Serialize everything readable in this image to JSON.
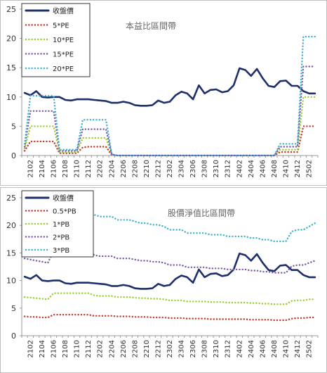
{
  "chart_data": [
    {
      "type": "line",
      "title": "本益比區間帶",
      "ylim": [
        0,
        25
      ],
      "yticks": [
        0,
        5,
        10,
        15,
        20,
        25
      ],
      "x": [
        "2101",
        "2102",
        "2103",
        "2104",
        "2105",
        "2106",
        "2107",
        "2108",
        "2109",
        "2110",
        "2111",
        "2112",
        "2201",
        "2202",
        "2203",
        "2204",
        "2205",
        "2206",
        "2207",
        "2208",
        "2209",
        "2210",
        "2211",
        "2212",
        "2301",
        "2302",
        "2303",
        "2304",
        "2305",
        "2306",
        "2307",
        "2308",
        "2309",
        "2310",
        "2311",
        "2312",
        "2401",
        "2402",
        "2403",
        "2404",
        "2405",
        "2406",
        "2407",
        "2408",
        "2409",
        "2410",
        "2411",
        "2412",
        "2501",
        "2502",
        "2503"
      ],
      "xtick_labels": [
        "2102",
        "2104",
        "2106",
        "2108",
        "2110",
        "2112",
        "2202",
        "2204",
        "2206",
        "2208",
        "2210",
        "2212",
        "2302",
        "2304",
        "2306",
        "2308",
        "2310",
        "2312",
        "2402",
        "2404",
        "2406",
        "2408",
        "2410",
        "2412",
        "2502"
      ],
      "legend_position": "top-left",
      "series": [
        {
          "name": "收盤價",
          "color": "#1f2f6b",
          "style": "solid",
          "values": [
            10.7,
            10.3,
            11.0,
            10.0,
            9.9,
            10.0,
            10.0,
            9.5,
            9.4,
            9.6,
            9.6,
            9.6,
            9.5,
            9.4,
            9.3,
            9.0,
            9.0,
            9.2,
            9.0,
            8.6,
            8.5,
            8.5,
            8.6,
            9.4,
            9.0,
            9.2,
            10.3,
            10.9,
            10.6,
            9.6,
            12.0,
            10.6,
            11.2,
            11.3,
            10.8,
            11.0,
            12.0,
            14.9,
            14.6,
            13.6,
            14.8,
            13.2,
            11.9,
            11.7,
            12.7,
            12.8,
            11.9,
            11.9,
            11.0,
            10.6,
            10.6
          ]
        },
        {
          "name": "5*PE",
          "color": "#c0392b",
          "style": "dotted",
          "values": [
            0.8,
            2.4,
            2.4,
            2.4,
            2.4,
            2.4,
            0.4,
            0.4,
            0.4,
            0.4,
            1.4,
            1.5,
            1.5,
            1.5,
            1.5,
            0.1,
            0,
            0,
            0,
            0,
            0,
            0,
            0,
            0,
            0,
            0,
            0,
            0,
            0,
            0,
            0,
            0,
            0,
            0,
            0,
            0,
            0,
            0,
            0,
            0,
            0,
            0,
            0,
            0,
            0.6,
            0.6,
            0.6,
            0.6,
            5.0,
            5.0,
            5.0
          ]
        },
        {
          "name": "10*PE",
          "color": "#9acd32",
          "style": "dotted",
          "values": [
            1.2,
            5.0,
            5.0,
            5.0,
            5.0,
            5.0,
            0.6,
            0.6,
            0.6,
            0.6,
            3.0,
            3.0,
            3.0,
            3.0,
            3.0,
            0.1,
            0,
            0,
            0,
            0,
            0,
            0,
            0,
            0,
            0,
            0,
            0,
            0,
            0,
            0,
            0,
            0,
            0,
            0,
            0,
            0,
            0,
            0,
            0,
            0,
            0,
            0,
            0,
            0,
            1.0,
            1.0,
            1.0,
            1.0,
            10.0,
            10.0,
            10.0
          ]
        },
        {
          "name": "15*PE",
          "color": "#7a58a8",
          "style": "dotted",
          "values": [
            1.5,
            7.6,
            7.6,
            7.6,
            7.6,
            7.6,
            0.8,
            0.8,
            0.8,
            0.8,
            4.5,
            4.5,
            4.5,
            4.5,
            4.5,
            0.2,
            0,
            0,
            0,
            0,
            0,
            0,
            0,
            0,
            0,
            0,
            0,
            0,
            0,
            0,
            0,
            0,
            0,
            0,
            0,
            0,
            0,
            0,
            0,
            0,
            0,
            0,
            0,
            0,
            1.5,
            1.5,
            1.5,
            1.5,
            15.2,
            15.2,
            15.2
          ]
        },
        {
          "name": "20*PE",
          "color": "#3fb1d0",
          "style": "dotted",
          "values": [
            2.0,
            10.2,
            10.2,
            10.2,
            10.2,
            10.2,
            1.0,
            1.0,
            1.0,
            1.0,
            6.1,
            6.1,
            6.1,
            6.1,
            6.1,
            0.2,
            0,
            0,
            0,
            0,
            0,
            0,
            0,
            0,
            0,
            0,
            0,
            0,
            0,
            0,
            0,
            0,
            0,
            0,
            0,
            0,
            0,
            0,
            0,
            0,
            0,
            0,
            0,
            0,
            2.0,
            2.0,
            2.0,
            2.0,
            20.3,
            20.3,
            20.3
          ]
        }
      ]
    },
    {
      "type": "line",
      "title": "股價淨值比區間帶",
      "ylim": [
        0,
        25
      ],
      "yticks": [
        0,
        5,
        10,
        15,
        20,
        25
      ],
      "x": [
        "2101",
        "2102",
        "2103",
        "2104",
        "2105",
        "2106",
        "2107",
        "2108",
        "2109",
        "2110",
        "2111",
        "2112",
        "2201",
        "2202",
        "2203",
        "2204",
        "2205",
        "2206",
        "2207",
        "2208",
        "2209",
        "2210",
        "2211",
        "2212",
        "2301",
        "2302",
        "2303",
        "2304",
        "2305",
        "2306",
        "2307",
        "2308",
        "2309",
        "2310",
        "2311",
        "2312",
        "2401",
        "2402",
        "2403",
        "2404",
        "2405",
        "2406",
        "2407",
        "2408",
        "2409",
        "2410",
        "2411",
        "2412",
        "2501",
        "2502",
        "2503"
      ],
      "xtick_labels": [
        "2102",
        "2104",
        "2106",
        "2108",
        "2110",
        "2112",
        "2202",
        "2204",
        "2206",
        "2208",
        "2210",
        "2212",
        "2302",
        "2304",
        "2306",
        "2308",
        "2310",
        "2312",
        "2402",
        "2404",
        "2406",
        "2408",
        "2410",
        "2412",
        "2502"
      ],
      "legend_position": "top-left",
      "series": [
        {
          "name": "收盤價",
          "color": "#1f2f6b",
          "style": "solid",
          "values": [
            10.7,
            10.3,
            11.0,
            10.0,
            9.9,
            10.0,
            10.0,
            9.5,
            9.4,
            9.6,
            9.6,
            9.6,
            9.5,
            9.4,
            9.3,
            9.0,
            9.0,
            9.2,
            9.0,
            8.6,
            8.5,
            8.5,
            8.6,
            9.4,
            9.0,
            9.2,
            10.3,
            10.9,
            10.6,
            9.6,
            12.0,
            10.6,
            11.2,
            11.3,
            10.8,
            11.0,
            12.0,
            14.9,
            14.6,
            13.6,
            14.8,
            13.2,
            11.9,
            11.7,
            12.7,
            12.8,
            11.9,
            11.9,
            11.0,
            10.6,
            10.6
          ]
        },
        {
          "name": "0.5*PB",
          "color": "#c0392b",
          "style": "dotted",
          "values": [
            3.5,
            3.4,
            3.4,
            3.3,
            3.3,
            3.8,
            3.8,
            3.8,
            3.8,
            3.8,
            3.8,
            3.8,
            3.6,
            3.6,
            3.6,
            3.6,
            3.5,
            3.5,
            3.5,
            3.4,
            3.4,
            3.4,
            3.3,
            3.3,
            3.3,
            3.2,
            3.2,
            3.2,
            3.1,
            3.1,
            3.1,
            3.1,
            3.0,
            3.0,
            3.0,
            3.0,
            3.0,
            3.0,
            3.0,
            2.9,
            2.9,
            2.9,
            2.9,
            2.8,
            2.8,
            2.8,
            3.1,
            3.2,
            3.2,
            3.3,
            3.3
          ]
        },
        {
          "name": "1*PB",
          "color": "#9acd32",
          "style": "dotted",
          "values": [
            7.0,
            6.9,
            6.8,
            6.7,
            6.6,
            7.7,
            7.7,
            7.7,
            7.7,
            7.7,
            7.7,
            7.7,
            7.3,
            7.2,
            7.2,
            7.2,
            7.0,
            7.0,
            7.0,
            6.9,
            6.8,
            6.8,
            6.7,
            6.7,
            6.6,
            6.4,
            6.4,
            6.4,
            6.2,
            6.2,
            6.2,
            6.2,
            6.1,
            6.1,
            6.1,
            6.0,
            6.0,
            6.0,
            6.0,
            5.9,
            5.9,
            5.8,
            5.8,
            5.7,
            5.7,
            5.7,
            6.3,
            6.4,
            6.4,
            6.6,
            6.6
          ]
        },
        {
          "name": "2*PB",
          "color": "#7a58a8",
          "style": "dotted",
          "values": [
            14.0,
            13.8,
            13.6,
            13.4,
            13.2,
            15.4,
            15.4,
            15.4,
            15.4,
            15.4,
            15.4,
            15.4,
            14.6,
            14.4,
            14.4,
            14.4,
            14.0,
            14.0,
            14.0,
            13.8,
            13.6,
            13.6,
            13.4,
            13.4,
            13.2,
            12.8,
            12.8,
            12.8,
            12.4,
            12.4,
            12.4,
            12.4,
            12.2,
            12.2,
            12.2,
            12.0,
            12.0,
            12.0,
            12.0,
            11.8,
            11.8,
            11.6,
            11.6,
            11.4,
            11.4,
            11.4,
            12.6,
            12.8,
            12.8,
            13.2,
            13.6
          ]
        },
        {
          "name": "3*PB",
          "color": "#3fb1d0",
          "style": "dotted",
          "values": [
            21.0,
            20.7,
            20.4,
            20.1,
            19.8,
            23.1,
            23.1,
            23.1,
            23.1,
            23.1,
            23.1,
            23.1,
            21.9,
            21.6,
            21.6,
            21.6,
            21.0,
            21.0,
            21.0,
            20.7,
            20.4,
            20.4,
            20.1,
            20.1,
            19.8,
            19.2,
            19.2,
            19.2,
            18.6,
            18.6,
            18.6,
            18.6,
            18.3,
            18.3,
            18.3,
            18.0,
            18.0,
            18.0,
            18.0,
            17.7,
            17.7,
            17.4,
            17.4,
            17.1,
            17.1,
            17.1,
            18.9,
            19.2,
            19.2,
            19.8,
            20.4
          ]
        }
      ]
    }
  ]
}
